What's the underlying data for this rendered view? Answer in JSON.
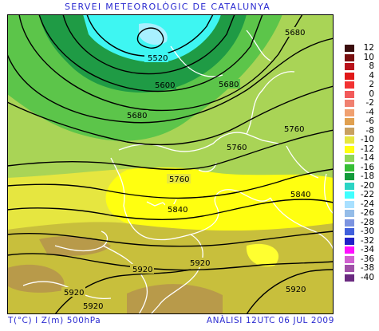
{
  "title": "SERVEI METEOROLÒGIC DE CATALUNYA",
  "footer": {
    "variables": "T(°C) I Z(m) 500hPa",
    "analysis": "ANÀLISI 12UTC 06 JUL 2009"
  },
  "legend": {
    "levels": [
      "12",
      "10",
      "8",
      "4",
      "2",
      "0",
      "-2",
      "-4",
      "-6",
      "-8",
      "-10",
      "-12",
      "-14",
      "-16",
      "-18",
      "-20",
      "-22",
      "-24",
      "-26",
      "-28",
      "-30",
      "-32",
      "-34",
      "-36",
      "-38",
      "-40"
    ],
    "colors": [
      "#3a0e0e",
      "#7a1010",
      "#b8121a",
      "#e01818",
      "#f23232",
      "#f25a5a",
      "#f08070",
      "#f0a070",
      "#e0a050",
      "#c8a060",
      "#e6e640",
      "#ffff10",
      "#8fd65a",
      "#36be36",
      "#129a3a",
      "#2ad4c4",
      "#40ffff",
      "#a8e0ff",
      "#94bce8",
      "#7c94e0",
      "#4060dc",
      "#2020c8",
      "#ff10ff",
      "#d060d0",
      "#a050a8",
      "#6a2a80"
    ]
  },
  "contours": {
    "labels": [
      "5520",
      "5600",
      "5680",
      "5680",
      "5680",
      "5760",
      "5760",
      "5760",
      "5840",
      "5840",
      "5920",
      "5920",
      "5920",
      "5920",
      "5920"
    ]
  }
}
